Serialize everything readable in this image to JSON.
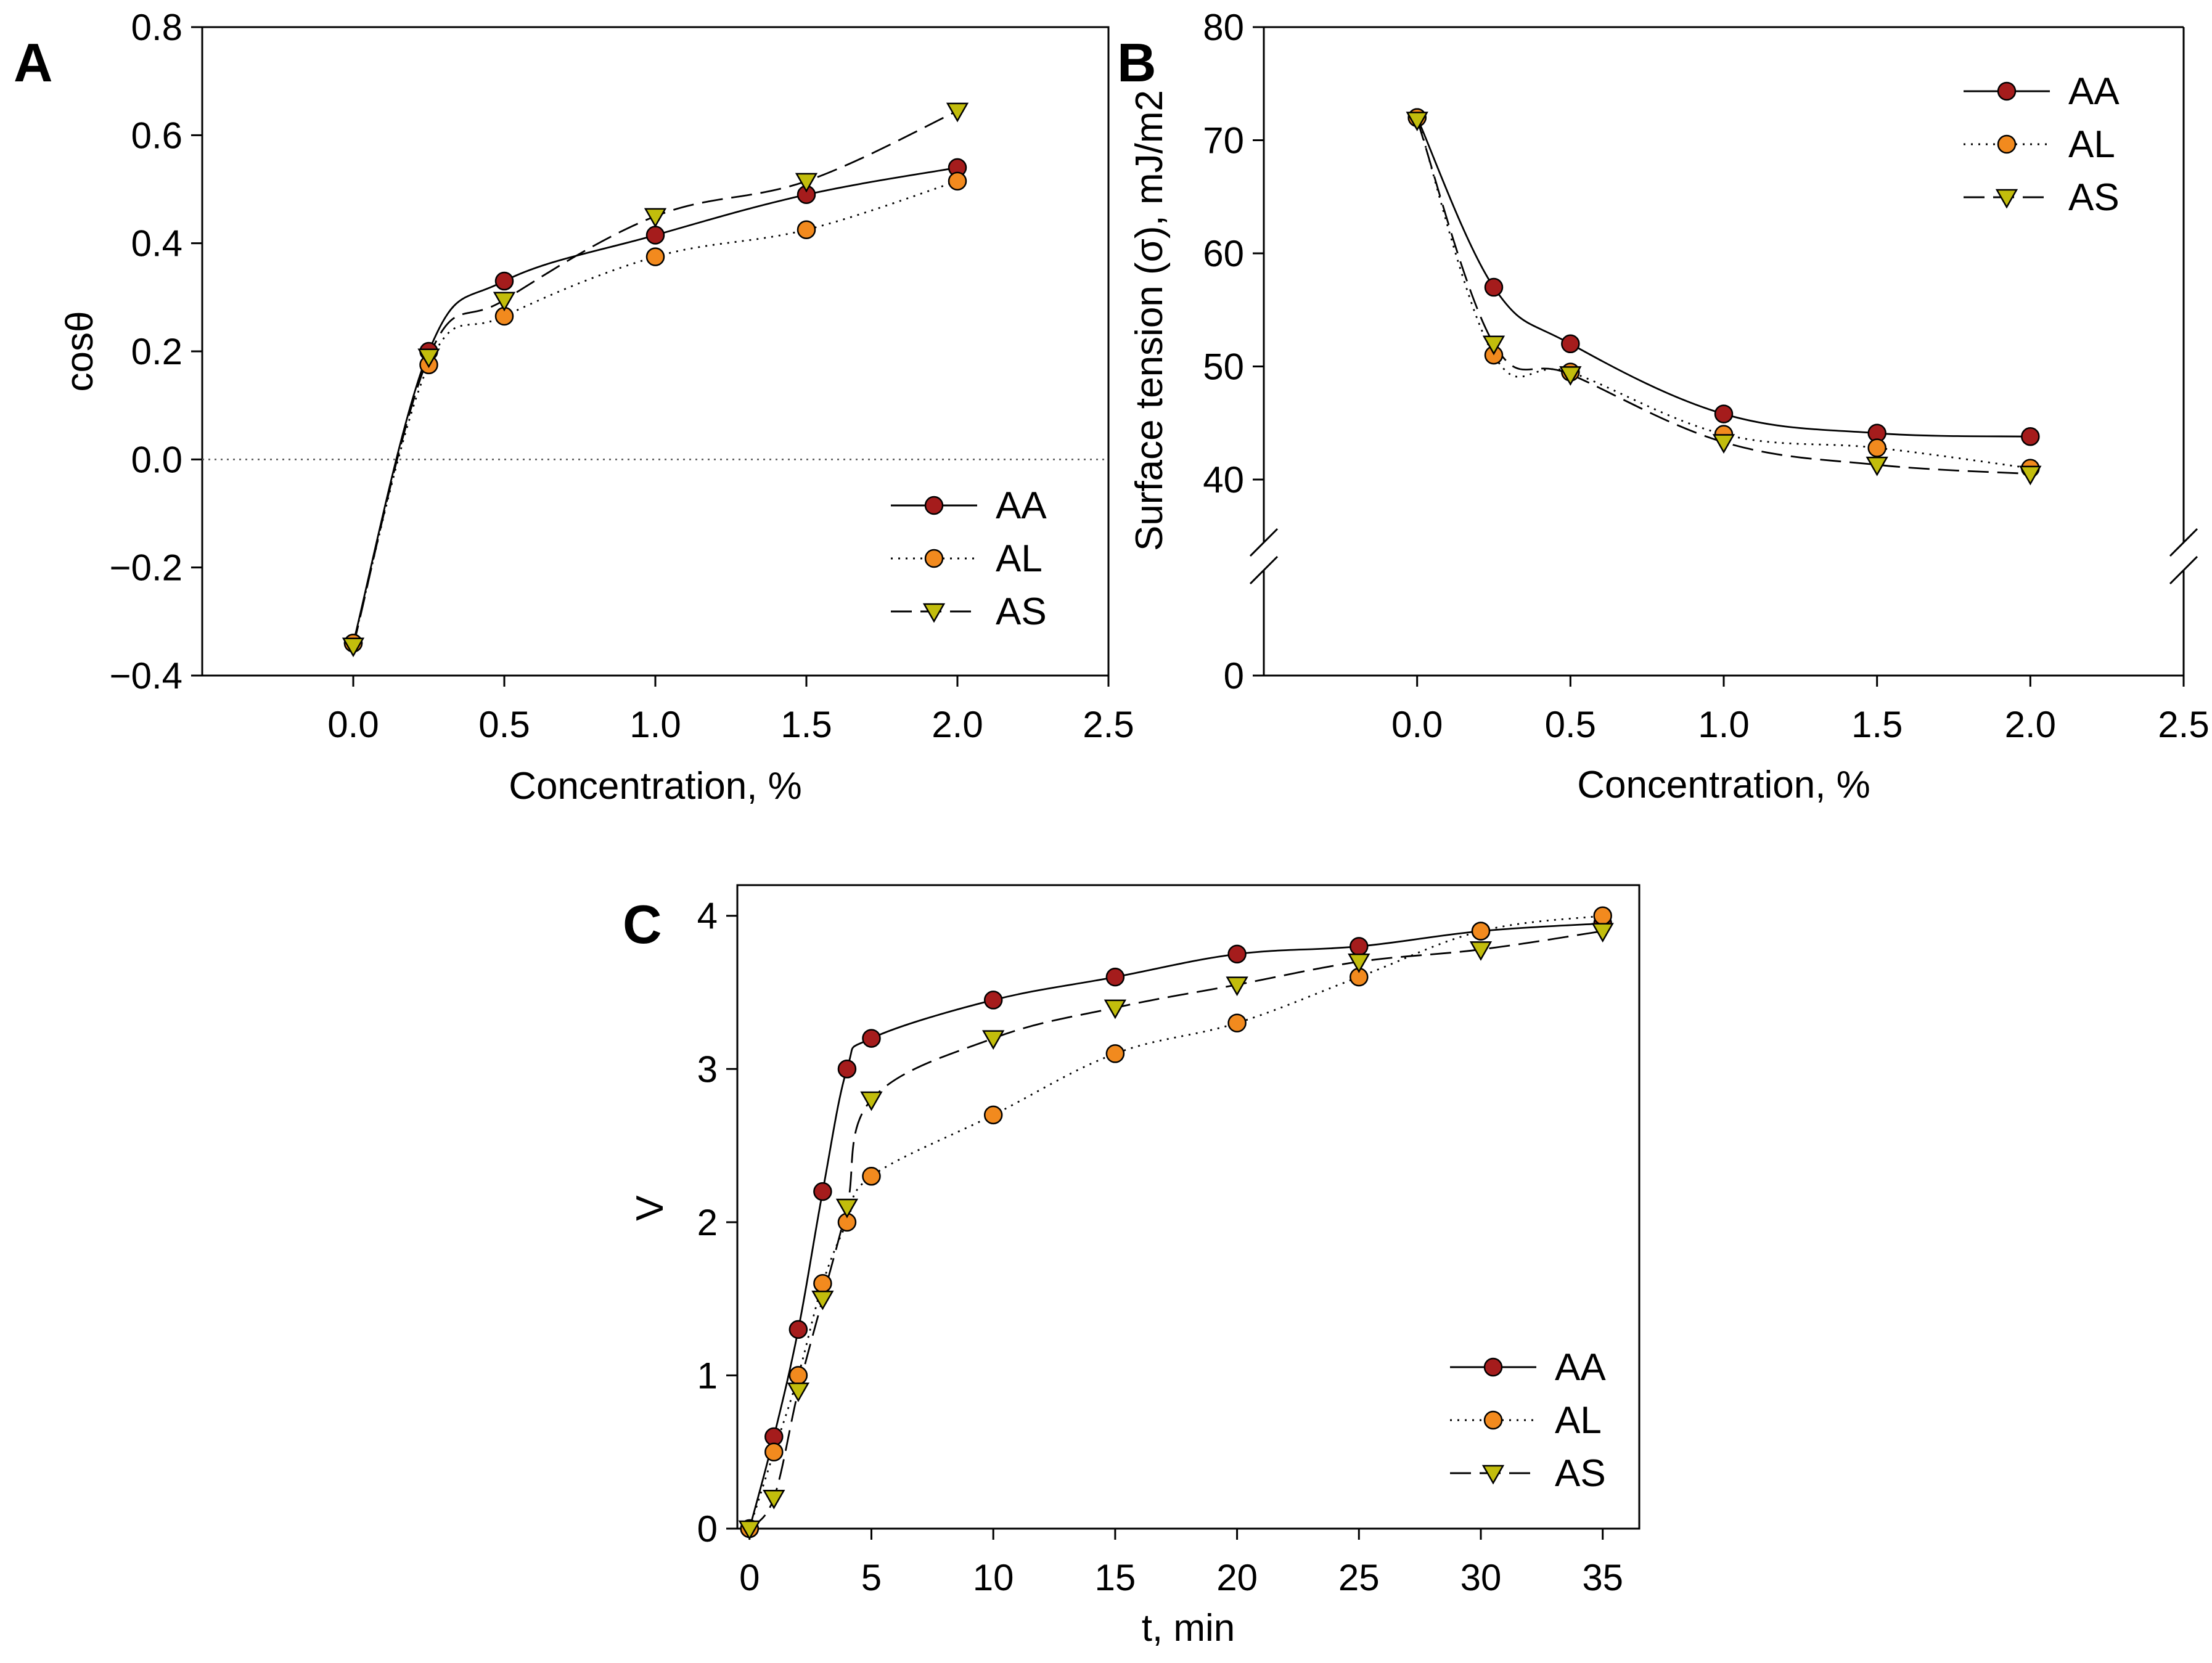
{
  "colors": {
    "AA": "#a51c1c",
    "AL": "#f28a1e",
    "AS": "#c2bd0c",
    "marker_stroke": "#000000",
    "axis": "#000000",
    "zero_line": "#555555"
  },
  "chart_data": [
    {
      "type": "line",
      "panel": "A",
      "xlabel": "Concentration, %",
      "ylabel": "cosθ",
      "xlim": [
        -0.5,
        2.5
      ],
      "ylim": [
        -0.4,
        0.8
      ],
      "xticks": [
        "0.0",
        "0.5",
        "1.0",
        "1.5",
        "2.0",
        "2.5"
      ],
      "yticks": [
        "−0.4",
        "−0.2",
        "0.0",
        "0.2",
        "0.4",
        "0.6",
        "0.8"
      ],
      "zero_reference_line": true,
      "legend": {
        "position": "bottom-right",
        "entries": [
          "AA",
          "AL",
          "AS"
        ]
      },
      "x": [
        0,
        0.25,
        0.5,
        1.0,
        1.5,
        2.0
      ],
      "series": [
        {
          "name": "AA",
          "marker": "circle",
          "line": "solid",
          "values": [
            -0.34,
            0.2,
            0.33,
            0.415,
            0.49,
            0.54
          ]
        },
        {
          "name": "AL",
          "marker": "circle",
          "line": "dotted",
          "values": [
            -0.34,
            0.175,
            0.265,
            0.375,
            0.425,
            0.515
          ]
        },
        {
          "name": "AS",
          "marker": "triangle-down",
          "line": "dashed",
          "values": [
            -0.345,
            0.19,
            0.295,
            0.45,
            0.515,
            0.645
          ]
        }
      ]
    },
    {
      "type": "line",
      "panel": "B",
      "xlabel": "Concentration, %",
      "ylabel": "Surface tension (σ), mJ/m2",
      "xlim": [
        -0.5,
        2.5
      ],
      "ylim": [
        0,
        80
      ],
      "axis_break": [
        20,
        35
      ],
      "xticks": [
        "0.0",
        "0.5",
        "1.0",
        "1.5",
        "2.0",
        "2.5"
      ],
      "yticks": [
        "0",
        "40",
        "50",
        "60",
        "70",
        "80"
      ],
      "legend": {
        "position": "top-right",
        "entries": [
          "AA",
          "AL",
          "AS"
        ]
      },
      "x": [
        0,
        0.25,
        0.5,
        1.0,
        1.5,
        2.0
      ],
      "series": [
        {
          "name": "AA",
          "marker": "circle",
          "line": "solid",
          "values": [
            72.0,
            57.0,
            52.0,
            45.8,
            44.1,
            43.8
          ]
        },
        {
          "name": "AL",
          "marker": "circle",
          "line": "dotted",
          "values": [
            72.0,
            51.0,
            49.5,
            44.0,
            42.8,
            41.0
          ]
        },
        {
          "name": "AS",
          "marker": "triangle-down",
          "line": "dashed",
          "values": [
            71.8,
            52.0,
            49.3,
            43.3,
            41.3,
            40.5
          ]
        }
      ]
    },
    {
      "type": "line",
      "panel": "C",
      "xlabel": "t, min",
      "ylabel": "V",
      "xlim": [
        -0.5,
        36.5
      ],
      "ylim": [
        0,
        4.2
      ],
      "xticks": [
        "0",
        "5",
        "10",
        "15",
        "20",
        "25",
        "30",
        "35"
      ],
      "yticks": [
        "0",
        "1",
        "2",
        "3",
        "4"
      ],
      "legend": {
        "position": "bottom-right",
        "entries": [
          "AA",
          "AL",
          "AS"
        ]
      },
      "x": [
        0,
        1,
        2,
        3,
        4,
        5,
        10,
        15,
        20,
        25,
        30,
        35
      ],
      "series": [
        {
          "name": "AA",
          "marker": "circle",
          "line": "solid",
          "values": [
            0,
            0.6,
            1.3,
            2.2,
            3.0,
            3.2,
            3.45,
            3.6,
            3.75,
            3.8,
            3.9,
            3.95
          ]
        },
        {
          "name": "AL",
          "marker": "circle",
          "line": "dotted",
          "values": [
            0,
            0.5,
            1.0,
            1.6,
            2.0,
            2.3,
            2.7,
            3.1,
            3.3,
            3.6,
            3.9,
            4.0
          ]
        },
        {
          "name": "AS",
          "marker": "triangle-down",
          "line": "dashed",
          "values": [
            0,
            0.2,
            0.9,
            1.5,
            2.1,
            2.8,
            3.2,
            3.4,
            3.55,
            3.7,
            3.78,
            3.9
          ]
        }
      ]
    }
  ]
}
